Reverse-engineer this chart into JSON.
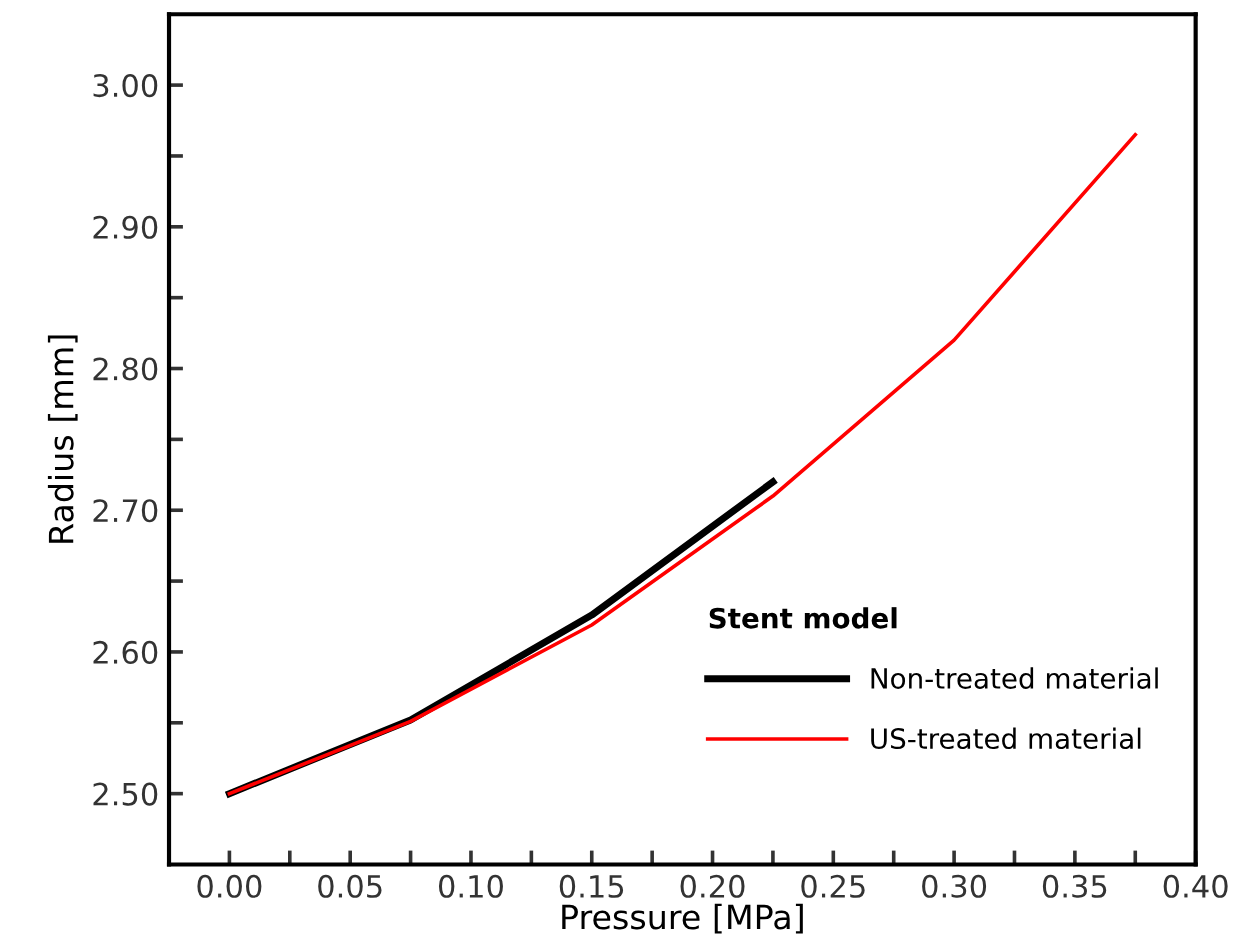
{
  "chart_data": {
    "type": "line",
    "xlabel": "Pressure [MPa]",
    "ylabel": "Radius [mm]",
    "legend_title": "Stent model",
    "legend": "bottom right",
    "grid": false,
    "marker": "none",
    "line_style": "solid",
    "xlim": [
      -0.025,
      0.4
    ],
    "ylim": [
      2.45,
      3.05
    ],
    "xticks": [
      {
        "value": 0.0,
        "label": "0.00"
      },
      {
        "value": 0.025,
        "label": null
      },
      {
        "value": 0.05,
        "label": "0.05"
      },
      {
        "value": 0.075,
        "label": null
      },
      {
        "value": 0.1,
        "label": "0.10"
      },
      {
        "value": 0.125,
        "label": null
      },
      {
        "value": 0.15,
        "label": "0.15"
      },
      {
        "value": 0.175,
        "label": null
      },
      {
        "value": 0.2,
        "label": "0.20"
      },
      {
        "value": 0.225,
        "label": null
      },
      {
        "value": 0.25,
        "label": "0.25"
      },
      {
        "value": 0.275,
        "label": null
      },
      {
        "value": 0.3,
        "label": "0.30"
      },
      {
        "value": 0.325,
        "label": null
      },
      {
        "value": 0.35,
        "label": "0.35"
      },
      {
        "value": 0.375,
        "label": null
      },
      {
        "value": 0.4,
        "label": "0.40"
      }
    ],
    "yticks": [
      {
        "value": 2.5,
        "label": "2.50"
      },
      {
        "value": 2.55,
        "label": null
      },
      {
        "value": 2.6,
        "label": "2.60"
      },
      {
        "value": 2.65,
        "label": null
      },
      {
        "value": 2.7,
        "label": "2.70"
      },
      {
        "value": 2.75,
        "label": null
      },
      {
        "value": 2.8,
        "label": "2.80"
      },
      {
        "value": 2.85,
        "label": null
      },
      {
        "value": 2.9,
        "label": "2.90"
      },
      {
        "value": 2.95,
        "label": null
      },
      {
        "value": 3.0,
        "label": "3.00"
      }
    ],
    "series": [
      {
        "name": "Non-treated material",
        "color": "#000000",
        "x": [
          0,
          0.075,
          0.15,
          0.225
        ],
        "values": [
          2.5,
          2.552,
          2.626,
          2.72
        ]
      },
      {
        "name": "US-treated material",
        "color": "#ff0000",
        "x": [
          0,
          0.075,
          0.15,
          0.225,
          0.3,
          0.375
        ],
        "values": [
          2.5,
          2.551,
          2.619,
          2.71,
          2.82,
          2.965
        ]
      }
    ]
  }
}
